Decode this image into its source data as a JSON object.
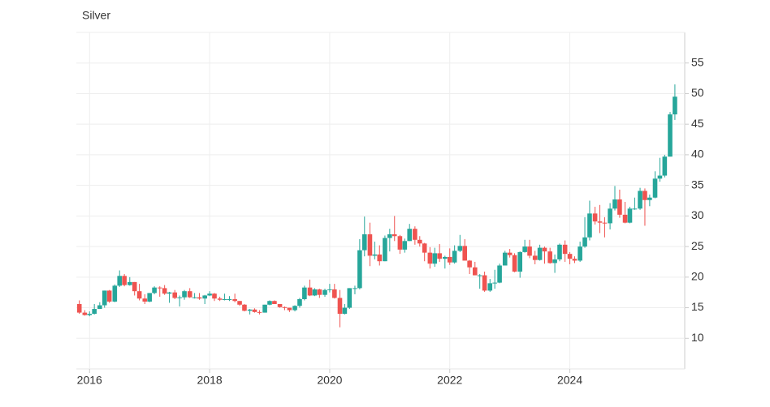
{
  "chart_data": {
    "type": "candlestick",
    "title": "Silver",
    "x": [
      2015.83,
      2015.92,
      2016.0,
      2016.08,
      2016.17,
      2016.25,
      2016.33,
      2016.42,
      2016.5,
      2016.58,
      2016.67,
      2016.75,
      2016.83,
      2016.92,
      2017.0,
      2017.08,
      2017.17,
      2017.25,
      2017.33,
      2017.42,
      2017.5,
      2017.58,
      2017.67,
      2017.75,
      2017.83,
      2017.92,
      2018.0,
      2018.08,
      2018.17,
      2018.25,
      2018.33,
      2018.42,
      2018.5,
      2018.58,
      2018.67,
      2018.75,
      2018.83,
      2018.92,
      2019.0,
      2019.08,
      2019.17,
      2019.25,
      2019.33,
      2019.42,
      2019.5,
      2019.58,
      2019.67,
      2019.75,
      2019.83,
      2019.92,
      2020.0,
      2020.08,
      2020.17,
      2020.25,
      2020.33,
      2020.42,
      2020.5,
      2020.58,
      2020.67,
      2020.75,
      2020.83,
      2020.92,
      2021.0,
      2021.08,
      2021.17,
      2021.25,
      2021.33,
      2021.42,
      2021.5,
      2021.58,
      2021.67,
      2021.75,
      2021.83,
      2021.92,
      2022.0,
      2022.08,
      2022.17,
      2022.25,
      2022.33,
      2022.42,
      2022.5,
      2022.58,
      2022.67,
      2022.75,
      2022.83,
      2022.92,
      2023.0,
      2023.08,
      2023.17,
      2023.25,
      2023.33,
      2023.42,
      2023.5,
      2023.58,
      2023.67,
      2023.75,
      2023.83,
      2023.92,
      2024.0,
      2024.08,
      2024.17,
      2024.25,
      2024.33,
      2024.42,
      2024.5,
      2024.58,
      2024.67,
      2024.75,
      2024.83,
      2024.92,
      2025.0,
      2025.08,
      2025.17,
      2025.25,
      2025.33,
      2025.42,
      2025.5,
      2025.58,
      2025.67,
      2025.75
    ],
    "open": [
      15.6,
      14.2,
      13.8,
      14.0,
      14.8,
      15.4,
      17.8,
      16.0,
      18.6,
      20.2,
      18.7,
      19.2,
      17.7,
      16.5,
      16.0,
      17.4,
      18.3,
      18.2,
      17.3,
      17.5,
      16.6,
      16.7,
      17.7,
      16.7,
      16.7,
      16.5,
      17.0,
      17.3,
      16.5,
      16.3,
      16.4,
      16.4,
      16.1,
      15.5,
      14.5,
      14.7,
      14.3,
      14.2,
      15.5,
      16.1,
      15.6,
      15.1,
      15.0,
      14.6,
      15.3,
      16.4,
      18.3,
      17.0,
      18.0,
      17.1,
      17.9,
      18.0,
      16.6,
      14.0,
      15.0,
      18.2,
      18.2,
      24.4,
      27.0,
      23.5,
      23.7,
      22.6,
      26.4,
      27.0,
      26.7,
      24.5,
      25.9,
      27.9,
      26.1,
      25.5,
      24.0,
      22.2,
      23.9,
      23.0,
      23.3,
      22.4,
      24.3,
      25.1,
      22.7,
      21.6,
      20.3,
      20.3,
      17.8,
      19.0,
      19.1,
      21.9,
      24.0,
      23.6,
      20.9,
      24.1,
      25.0,
      23.5,
      22.8,
      24.8,
      24.2,
      22.3,
      22.9,
      25.3,
      23.8,
      23.0,
      22.7,
      25.0,
      26.5,
      30.4,
      29.1,
      28.9,
      28.8,
      31.2,
      32.7,
      30.2,
      28.9,
      31.2,
      31.2,
      34.1,
      32.6,
      33.0,
      36.1,
      36.6,
      39.7,
      46.6
    ],
    "high": [
      16.2,
      14.6,
      14.4,
      15.6,
      15.9,
      17.8,
      17.9,
      18.8,
      21.1,
      20.5,
      20.0,
      19.2,
      18.9,
      17.2,
      17.4,
      18.5,
      18.5,
      18.7,
      17.6,
      17.9,
      17.0,
      17.9,
      18.2,
      17.4,
      17.4,
      17.1,
      17.7,
      17.4,
      16.8,
      17.3,
      16.9,
      17.3,
      16.1,
      15.6,
      14.8,
      14.9,
      14.6,
      15.5,
      16.2,
      16.2,
      15.6,
      15.2,
      15.0,
      15.4,
      16.6,
      18.6,
      19.6,
      18.2,
      18.1,
      18.1,
      18.9,
      18.9,
      17.9,
      15.6,
      18.2,
      18.6,
      26.2,
      29.9,
      28.9,
      25.8,
      25.2,
      26.8,
      27.9,
      30.0,
      26.9,
      26.3,
      28.7,
      28.3,
      26.7,
      25.6,
      24.9,
      24.8,
      25.4,
      23.5,
      24.7,
      25.2,
      26.9,
      26.2,
      22.8,
      22.5,
      20.5,
      20.9,
      19.7,
      21.2,
      22.2,
      24.3,
      24.6,
      23.9,
      24.2,
      26.1,
      26.1,
      24.3,
      25.3,
      25.0,
      24.8,
      23.7,
      25.5,
      26.0,
      24.1,
      23.4,
      25.8,
      29.8,
      32.5,
      31.5,
      31.8,
      29.8,
      32.1,
      34.9,
      34.3,
      32.3,
      31.5,
      33.0,
      34.6,
      34.5,
      33.5,
      37.3,
      39.5,
      40.0,
      47.0,
      51.5
    ],
    "low": [
      14.0,
      13.7,
      13.6,
      13.9,
      14.8,
      15.0,
      15.8,
      15.9,
      18.4,
      18.5,
      18.6,
      17.0,
      16.2,
      15.6,
      15.9,
      17.2,
      16.8,
      17.1,
      15.8,
      16.4,
      15.2,
      16.3,
      16.6,
      16.5,
      16.3,
      15.6,
      16.9,
      16.1,
      16.1,
      16.2,
      16.1,
      15.9,
      15.3,
      14.4,
      13.9,
      14.2,
      13.9,
      14.2,
      15.4,
      15.6,
      15.0,
      14.6,
      14.3,
      14.4,
      15.0,
      16.2,
      16.9,
      16.9,
      16.6,
      16.8,
      17.5,
      16.5,
      11.8,
      13.9,
      14.8,
      17.2,
      18.0,
      23.4,
      21.8,
      22.9,
      21.9,
      22.6,
      24.2,
      25.9,
      23.8,
      24.0,
      25.9,
      25.3,
      25.0,
      22.6,
      21.4,
      21.7,
      22.5,
      21.4,
      22.0,
      22.2,
      24.1,
      22.7,
      20.5,
      20.3,
      18.1,
      17.6,
      17.6,
      18.1,
      19.0,
      21.9,
      23.2,
      20.8,
      19.9,
      24.0,
      23.1,
      22.1,
      22.7,
      22.2,
      22.2,
      20.7,
      22.6,
      22.5,
      22.1,
      22.3,
      22.5,
      24.8,
      26.0,
      28.6,
      27.2,
      26.5,
      27.8,
      30.9,
      29.7,
      28.8,
      28.8,
      31.0,
      31.0,
      28.4,
      31.6,
      32.9,
      35.6,
      36.3,
      39.7,
      45.7
    ],
    "close": [
      14.2,
      13.8,
      14.0,
      14.8,
      15.4,
      17.8,
      16.0,
      18.6,
      20.2,
      18.7,
      19.2,
      17.7,
      16.5,
      16.0,
      17.4,
      18.3,
      18.2,
      17.3,
      17.5,
      16.6,
      16.7,
      17.7,
      16.7,
      16.7,
      16.5,
      17.0,
      17.3,
      16.5,
      16.3,
      16.4,
      16.4,
      16.1,
      15.5,
      14.5,
      14.7,
      14.3,
      14.2,
      15.5,
      16.1,
      15.6,
      15.1,
      15.0,
      14.6,
      15.3,
      16.4,
      18.3,
      17.0,
      18.0,
      17.1,
      17.9,
      18.0,
      16.6,
      14.0,
      15.0,
      18.2,
      18.2,
      24.4,
      27.0,
      23.5,
      23.7,
      22.6,
      26.4,
      27.0,
      26.7,
      24.5,
      25.9,
      27.9,
      26.1,
      25.5,
      24.0,
      22.2,
      23.9,
      23.0,
      23.3,
      22.4,
      24.3,
      25.1,
      22.7,
      21.6,
      20.3,
      20.3,
      17.8,
      19.0,
      19.1,
      21.9,
      24.0,
      23.6,
      20.9,
      24.1,
      25.0,
      23.5,
      22.8,
      24.8,
      24.2,
      22.3,
      22.9,
      25.3,
      23.8,
      23.0,
      22.7,
      25.0,
      26.5,
      30.4,
      29.1,
      28.9,
      28.8,
      31.2,
      32.7,
      30.2,
      28.9,
      31.2,
      31.2,
      34.1,
      32.6,
      33.0,
      36.1,
      36.6,
      39.7,
      46.6,
      49.5
    ],
    "up_color": "#26a69a",
    "down_color": "#ef5350",
    "xlim": [
      2015.78,
      2025.9
    ],
    "xticks": [
      2016,
      2018,
      2020,
      2022,
      2024
    ],
    "ylim": [
      5,
      60
    ],
    "yticks": [
      10,
      15,
      20,
      25,
      30,
      35,
      40,
      45,
      50,
      55
    ],
    "grid": true
  }
}
